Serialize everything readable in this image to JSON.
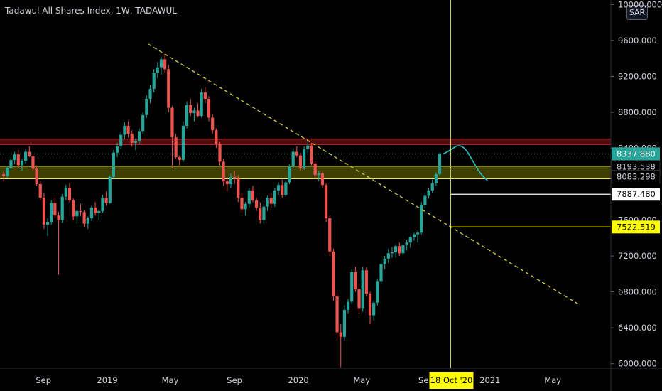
{
  "header": {
    "title": "Tadawul All Shares Index, 1W, TADAWUL",
    "currency": "SAR"
  },
  "chart_data": {
    "type": "candlestick",
    "title": "Tadawul All Shares Index, 1W, TADAWUL",
    "ylim": [
      5950,
      10050
    ],
    "y_ticks": [
      {
        "value": 10000,
        "label": "10000.000"
      },
      {
        "value": 9600,
        "label": "9600.000"
      },
      {
        "value": 9200,
        "label": "9200.000"
      },
      {
        "value": 8800,
        "label": "8800.000"
      },
      {
        "value": 8400,
        "label": "8400.000"
      },
      {
        "value": 7600,
        "label": "7600.000"
      },
      {
        "value": 7200,
        "label": "7200.000"
      },
      {
        "value": 6800,
        "label": "6800.000"
      },
      {
        "value": 6400,
        "label": "6400.000"
      },
      {
        "value": 6000,
        "label": "6000.000"
      }
    ],
    "x_ticks": [
      {
        "date": "2018-09-01",
        "label": "Sep"
      },
      {
        "date": "2019-01-01",
        "label": "2019"
      },
      {
        "date": "2019-05-01",
        "label": "May"
      },
      {
        "date": "2019-09-01",
        "label": "Sep"
      },
      {
        "date": "2020-01-01",
        "label": "2020"
      },
      {
        "date": "2020-05-01",
        "label": "May"
      },
      {
        "date": "2020-09-01",
        "label": "Sep"
      },
      {
        "date": "2021-01-01",
        "label": "2021"
      },
      {
        "date": "2021-05-01",
        "label": "May"
      }
    ],
    "x_range": [
      "2018-06-10",
      "2021-08-20"
    ],
    "crosshair": {
      "date": "2020-10-18",
      "label": "18 Oct '20"
    },
    "price_labels": [
      {
        "value": 8337.88,
        "label": "8337.880",
        "style": "current"
      },
      {
        "value": 8193.538,
        "label": "8193.538",
        "style": "level"
      },
      {
        "value": 8083.298,
        "label": "8083.298",
        "style": "level"
      },
      {
        "value": 7887.48,
        "label": "7887.480",
        "style": "white-box"
      },
      {
        "value": 7522.519,
        "label": "7522.519",
        "style": "yellow-box"
      }
    ],
    "zones": [
      {
        "from": 8440,
        "to": 8500,
        "color": "#5a0f12",
        "edge": "#b22222"
      },
      {
        "from": 8060,
        "to": 8200,
        "color": "#4a4a00",
        "edge": "#e8e86a"
      }
    ],
    "lines": [
      {
        "type": "trendline",
        "from": [
          "2019-03-20",
          9560
        ],
        "to": [
          "2021-06-20",
          6660
        ],
        "color": "#e0d23f",
        "dash": true
      },
      {
        "type": "ray",
        "date_from": "2020-10-18",
        "value": 7887.48,
        "color": "#ffffff"
      },
      {
        "type": "ray",
        "date_from": "2020-10-18",
        "value": 7522.519,
        "color": "#ffff00"
      },
      {
        "type": "hline",
        "value": 8337.88,
        "color": "#26a69a",
        "dotted": true
      }
    ],
    "projection": {
      "color": "#2ec4c4",
      "points": [
        [
          "2020-10-04",
          8337
        ],
        [
          "2020-10-18",
          8380
        ],
        [
          "2020-11-01",
          8440
        ],
        [
          "2020-11-15",
          8400
        ],
        [
          "2020-11-29",
          8260
        ],
        [
          "2020-12-13",
          8120
        ],
        [
          "2020-12-27",
          8040
        ]
      ]
    },
    "candles": [
      [
        "2018-06-17",
        8110,
        8140,
        8030,
        8090
      ],
      [
        "2018-06-24",
        8090,
        8200,
        8070,
        8180
      ],
      [
        "2018-07-01",
        8180,
        8300,
        8150,
        8270
      ],
      [
        "2018-07-08",
        8270,
        8360,
        8220,
        8330
      ],
      [
        "2018-07-15",
        8330,
        8380,
        8180,
        8210
      ],
      [
        "2018-07-22",
        8210,
        8280,
        8150,
        8260
      ],
      [
        "2018-07-29",
        8260,
        8390,
        8230,
        8360
      ],
      [
        "2018-08-05",
        8360,
        8420,
        8300,
        8310
      ],
      [
        "2018-08-12",
        8310,
        8330,
        8150,
        8170
      ],
      [
        "2018-08-19",
        8170,
        8210,
        7980,
        8000
      ],
      [
        "2018-08-26",
        8000,
        8030,
        7820,
        7850
      ],
      [
        "2018-09-02",
        7850,
        7900,
        7500,
        7550
      ],
      [
        "2018-09-09",
        7550,
        7620,
        7420,
        7580
      ],
      [
        "2018-09-16",
        7580,
        7820,
        7550,
        7790
      ],
      [
        "2018-09-23",
        7790,
        7850,
        7620,
        7650
      ],
      [
        "2018-09-30",
        7650,
        7690,
        6990,
        7600
      ],
      [
        "2018-10-07",
        7600,
        7890,
        7570,
        7860
      ],
      [
        "2018-10-14",
        7860,
        7990,
        7820,
        7960
      ],
      [
        "2018-10-21",
        7960,
        8010,
        7800,
        7820
      ],
      [
        "2018-10-28",
        7820,
        7840,
        7600,
        7640
      ],
      [
        "2018-11-04",
        7640,
        7720,
        7560,
        7700
      ],
      [
        "2018-11-11",
        7700,
        7780,
        7640,
        7690
      ],
      [
        "2018-11-18",
        7690,
        7710,
        7520,
        7560
      ],
      [
        "2018-11-25",
        7560,
        7640,
        7500,
        7620
      ],
      [
        "2018-12-02",
        7620,
        7760,
        7590,
        7740
      ],
      [
        "2018-12-09",
        7740,
        7800,
        7650,
        7680
      ],
      [
        "2018-12-16",
        7680,
        7720,
        7600,
        7700
      ],
      [
        "2018-12-23",
        7700,
        7880,
        7680,
        7850
      ],
      [
        "2018-12-30",
        7850,
        7920,
        7760,
        7790
      ],
      [
        "2019-01-06",
        7790,
        8100,
        7780,
        8080
      ],
      [
        "2019-01-13",
        8080,
        8380,
        8060,
        8350
      ],
      [
        "2019-01-20",
        8350,
        8460,
        8300,
        8420
      ],
      [
        "2019-01-27",
        8420,
        8580,
        8390,
        8550
      ],
      [
        "2019-02-03",
        8550,
        8690,
        8500,
        8650
      ],
      [
        "2019-02-10",
        8650,
        8700,
        8520,
        8560
      ],
      [
        "2019-02-17",
        8560,
        8600,
        8420,
        8460
      ],
      [
        "2019-02-24",
        8460,
        8510,
        8380,
        8480
      ],
      [
        "2019-03-03",
        8480,
        8620,
        8440,
        8590
      ],
      [
        "2019-03-10",
        8590,
        8800,
        8560,
        8770
      ],
      [
        "2019-03-17",
        8770,
        8990,
        8740,
        8950
      ],
      [
        "2019-03-24",
        8950,
        9100,
        8900,
        9060
      ],
      [
        "2019-03-31",
        9060,
        9280,
        9020,
        9240
      ],
      [
        "2019-04-07",
        9240,
        9360,
        9180,
        9300
      ],
      [
        "2019-04-14",
        9300,
        9420,
        9220,
        9390
      ],
      [
        "2019-04-21",
        9390,
        9450,
        9240,
        9280
      ],
      [
        "2019-04-28",
        9280,
        9330,
        8800,
        8850
      ],
      [
        "2019-05-05",
        8850,
        8870,
        8180,
        8520
      ],
      [
        "2019-05-12",
        8520,
        8560,
        8280,
        8300
      ],
      [
        "2019-05-19",
        8300,
        8320,
        8200,
        8270
      ],
      [
        "2019-05-26",
        8270,
        8700,
        8250,
        8650
      ],
      [
        "2019-06-02",
        8650,
        8920,
        8620,
        8880
      ],
      [
        "2019-06-09",
        8880,
        8950,
        8760,
        8790
      ],
      [
        "2019-06-16",
        8790,
        8850,
        8700,
        8820
      ],
      [
        "2019-06-23",
        8820,
        8900,
        8750,
        8760
      ],
      [
        "2019-06-30",
        8760,
        9060,
        8740,
        9020
      ],
      [
        "2019-07-07",
        9020,
        9080,
        8900,
        8950
      ],
      [
        "2019-07-14",
        8950,
        8980,
        8700,
        8740
      ],
      [
        "2019-07-21",
        8740,
        8780,
        8560,
        8600
      ],
      [
        "2019-07-28",
        8600,
        8620,
        8400,
        8450
      ],
      [
        "2019-08-04",
        8450,
        8470,
        8200,
        8250
      ],
      [
        "2019-08-11",
        8250,
        8280,
        7980,
        8030
      ],
      [
        "2019-08-18",
        8030,
        8060,
        7920,
        8000
      ],
      [
        "2019-08-25",
        8000,
        8120,
        7960,
        8080
      ],
      [
        "2019-09-01",
        8080,
        8150,
        8000,
        8060
      ],
      [
        "2019-09-08",
        8060,
        8100,
        7800,
        7850
      ],
      [
        "2019-09-15",
        7850,
        7900,
        7680,
        7720
      ],
      [
        "2019-09-22",
        7720,
        7800,
        7650,
        7780
      ],
      [
        "2019-09-29",
        7780,
        7960,
        7740,
        7930
      ],
      [
        "2019-10-06",
        7930,
        7980,
        7800,
        7820
      ],
      [
        "2019-10-13",
        7820,
        7850,
        7700,
        7740
      ],
      [
        "2019-10-20",
        7740,
        7800,
        7560,
        7600
      ],
      [
        "2019-10-27",
        7600,
        7780,
        7560,
        7750
      ],
      [
        "2019-11-03",
        7750,
        7870,
        7700,
        7850
      ],
      [
        "2019-11-10",
        7850,
        7900,
        7740,
        7780
      ],
      [
        "2019-11-17",
        7780,
        7960,
        7750,
        7930
      ],
      [
        "2019-11-24",
        7930,
        8020,
        7880,
        7990
      ],
      [
        "2019-12-01",
        7990,
        8050,
        7850,
        7880
      ],
      [
        "2019-12-08",
        7880,
        8040,
        7860,
        8020
      ],
      [
        "2019-12-15",
        8020,
        8220,
        8000,
        8200
      ],
      [
        "2019-12-22",
        8200,
        8400,
        8180,
        8360
      ],
      [
        "2019-12-29",
        8360,
        8420,
        8300,
        8320
      ],
      [
        "2020-01-05",
        8320,
        8350,
        8150,
        8180
      ],
      [
        "2020-01-12",
        8180,
        8420,
        8160,
        8390
      ],
      [
        "2020-01-19",
        8390,
        8490,
        8350,
        8430
      ],
      [
        "2020-01-26",
        8430,
        8460,
        8200,
        8230
      ],
      [
        "2020-02-02",
        8230,
        8260,
        8060,
        8100
      ],
      [
        "2020-02-09",
        8100,
        8150,
        8030,
        8120
      ],
      [
        "2020-02-16",
        8120,
        8140,
        7960,
        7990
      ],
      [
        "2020-02-23",
        7990,
        8010,
        7580,
        7620
      ],
      [
        "2020-03-01",
        7620,
        7650,
        7200,
        7250
      ],
      [
        "2020-03-08",
        7250,
        7280,
        6700,
        6750
      ],
      [
        "2020-03-15",
        6750,
        6800,
        6260,
        6350
      ],
      [
        "2020-03-22",
        6350,
        6440,
        5960,
        6300
      ],
      [
        "2020-03-29",
        6300,
        6650,
        6260,
        6600
      ],
      [
        "2020-04-05",
        6600,
        6720,
        6560,
        6690
      ],
      [
        "2020-04-12",
        6690,
        7050,
        6660,
        7020
      ],
      [
        "2020-04-19",
        7020,
        7080,
        6800,
        6830
      ],
      [
        "2020-04-26",
        6830,
        6900,
        6560,
        6620
      ],
      [
        "2020-05-03",
        6620,
        7080,
        6580,
        7040
      ],
      [
        "2020-05-10",
        7040,
        7070,
        6750,
        6780
      ],
      [
        "2020-05-17",
        6780,
        6800,
        6440,
        6540
      ],
      [
        "2020-05-24",
        6540,
        6700,
        6480,
        6680
      ],
      [
        "2020-05-31",
        6680,
        6950,
        6650,
        6920
      ],
      [
        "2020-06-07",
        6920,
        7150,
        6890,
        7110
      ],
      [
        "2020-06-14",
        7110,
        7200,
        7050,
        7170
      ],
      [
        "2020-06-21",
        7170,
        7280,
        7120,
        7230
      ],
      [
        "2020-06-28",
        7230,
        7300,
        7180,
        7240
      ],
      [
        "2020-07-05",
        7240,
        7330,
        7180,
        7310
      ],
      [
        "2020-07-12",
        7310,
        7350,
        7200,
        7230
      ],
      [
        "2020-07-19",
        7230,
        7340,
        7200,
        7320
      ],
      [
        "2020-07-26",
        7320,
        7380,
        7260,
        7350
      ],
      [
        "2020-08-02",
        7350,
        7420,
        7290,
        7410
      ],
      [
        "2020-08-09",
        7410,
        7460,
        7370,
        7440
      ],
      [
        "2020-08-16",
        7440,
        7480,
        7350,
        7460
      ],
      [
        "2020-08-23",
        7460,
        7800,
        7440,
        7770
      ],
      [
        "2020-08-30",
        7770,
        7900,
        7730,
        7870
      ],
      [
        "2020-09-06",
        7870,
        7960,
        7840,
        7930
      ],
      [
        "2020-09-13",
        7930,
        8050,
        7900,
        8010
      ],
      [
        "2020-09-20",
        8010,
        8130,
        7980,
        8110
      ],
      [
        "2020-09-27",
        8110,
        8350,
        8090,
        8337
      ]
    ]
  }
}
